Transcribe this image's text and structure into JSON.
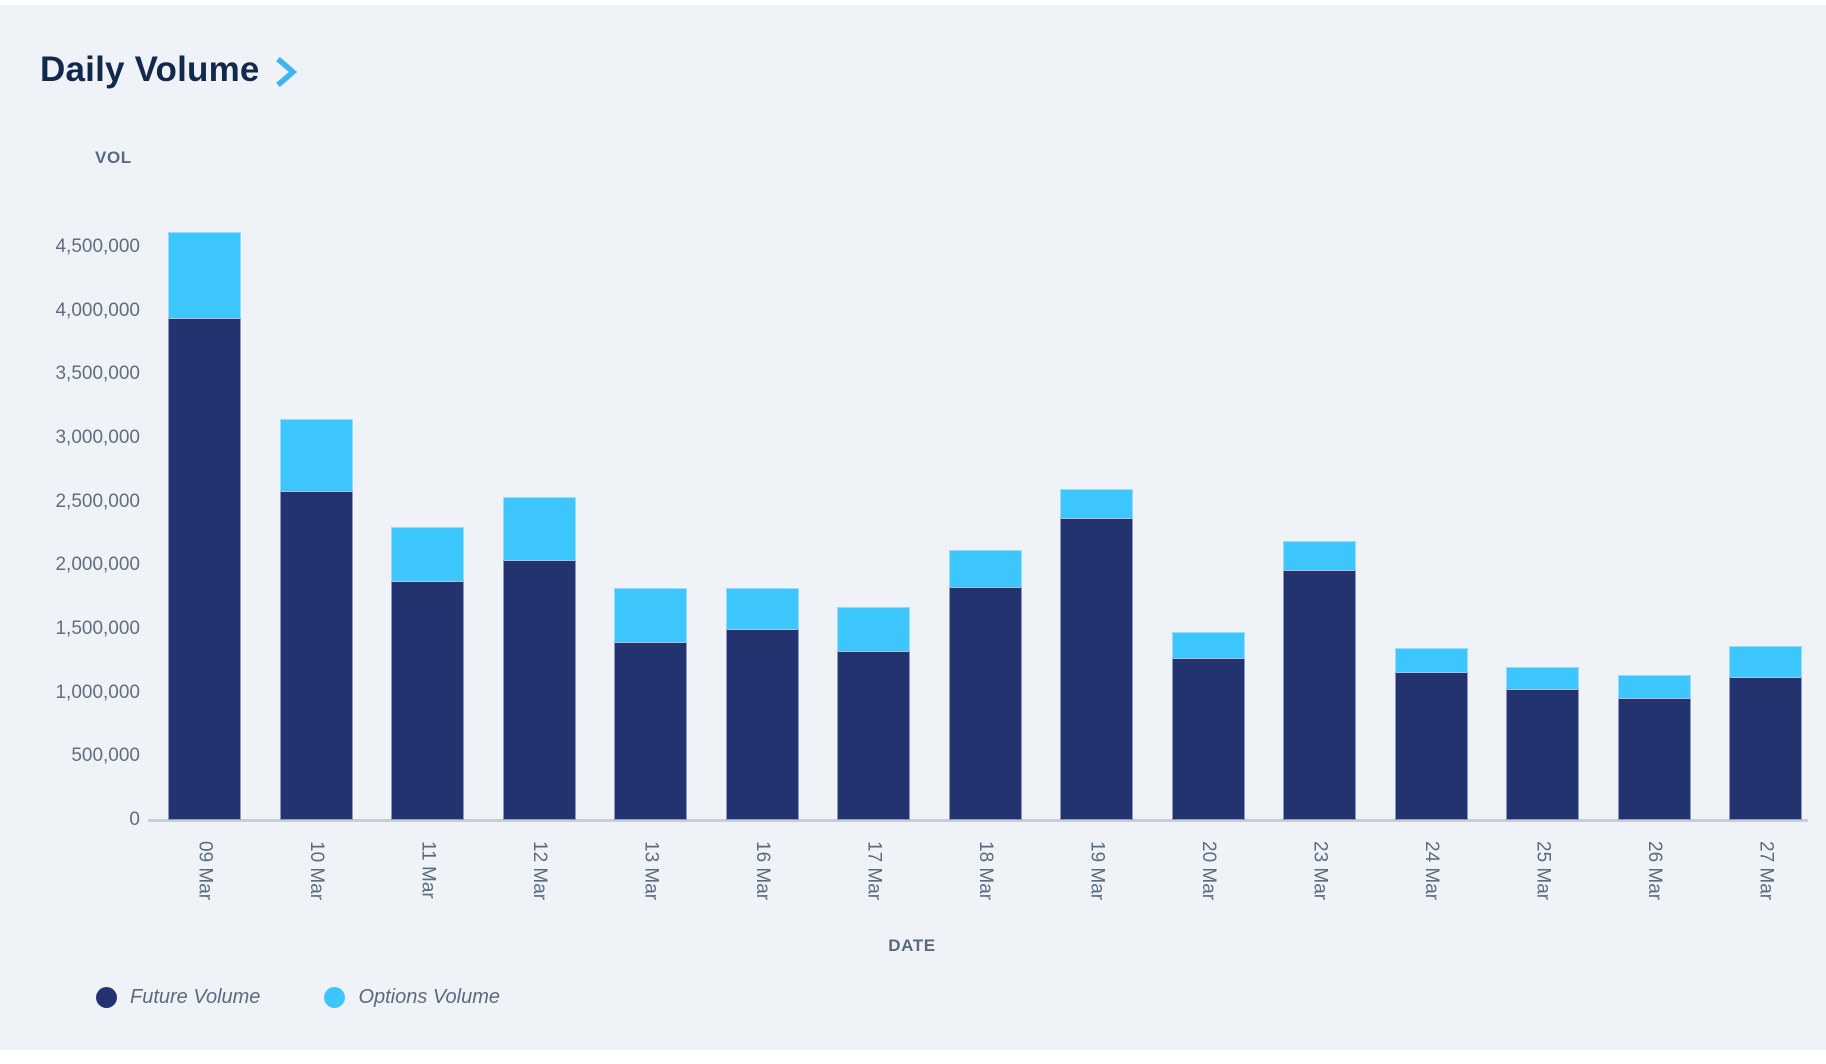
{
  "page": {
    "title": "Daily Volume"
  },
  "chart": {
    "y_axis_label": "VOL",
    "x_axis_label": "DATE",
    "background_color": "#EFF3F7",
    "baseline_color": "#C9CED6",
    "title_color": "#13294B",
    "chevron_color": "#3EB5F1",
    "axis_text_color": "#5F6E80"
  },
  "chart_data": {
    "type": "bar",
    "stacked": true,
    "title": "Daily Volume",
    "xlabel": "DATE",
    "ylabel": "VOL",
    "ylim": [
      0,
      4750000
    ],
    "ytick_step": 500000,
    "grid": false,
    "legend_position": "bottom-left",
    "categories": [
      "09 Mar",
      "10 Mar",
      "11 Mar",
      "12 Mar",
      "13 Mar",
      "16 Mar",
      "17 Mar",
      "18 Mar",
      "19 Mar",
      "20 Mar",
      "23 Mar",
      "24 Mar",
      "25 Mar",
      "26 Mar",
      "27 Mar"
    ],
    "series": [
      {
        "name": "Future Volume",
        "color": "#23336F",
        "values": [
          3940000,
          2580000,
          1880000,
          2040000,
          1400000,
          1500000,
          1330000,
          1830000,
          2370000,
          1270000,
          1960000,
          1160000,
          1030000,
          960000,
          1120000
        ]
      },
      {
        "name": "Options Volume",
        "color": "#3DC6FC",
        "values": [
          680000,
          570000,
          420000,
          500000,
          420000,
          320000,
          340000,
          290000,
          230000,
          210000,
          230000,
          190000,
          170000,
          180000,
          250000
        ]
      }
    ],
    "y_ticks": [
      {
        "value": 0,
        "label": "0"
      },
      {
        "value": 500000,
        "label": "500,000"
      },
      {
        "value": 1000000,
        "label": "1,000,000"
      },
      {
        "value": 1500000,
        "label": "1,500,000"
      },
      {
        "value": 2000000,
        "label": "2,000,000"
      },
      {
        "value": 2500000,
        "label": "2,500,000"
      },
      {
        "value": 3000000,
        "label": "3,000,000"
      },
      {
        "value": 3500000,
        "label": "3,500,000"
      },
      {
        "value": 4000000,
        "label": "4,000,000"
      },
      {
        "value": 4500000,
        "label": "4,500,000"
      }
    ]
  }
}
